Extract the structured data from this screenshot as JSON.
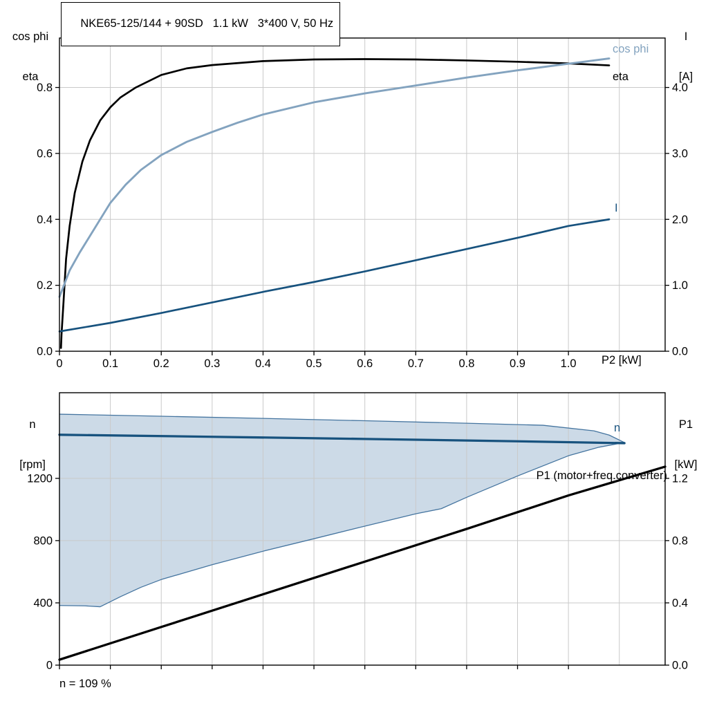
{
  "colors": {
    "curve_black": "#000000",
    "dark_blue": "#17527e",
    "light_blue": "#83a3bf",
    "band_fill": "#ccdae7",
    "band_stroke": "#44749f",
    "grid": "#c9c9c9",
    "axis": "#000000"
  },
  "chart_data": [
    {
      "type": "line",
      "title": "NKE65-125/144 + 90SD   1.1 kW   3*400 V, 50 Hz",
      "x_axis_label": "P2 [kW]",
      "y_left_axis_label": [
        "cos phi",
        "eta"
      ],
      "y_right_axis_label": [
        "I",
        "[A]"
      ],
      "xlim": [
        0,
        1.19
      ],
      "ylim_left": [
        0,
        0.95
      ],
      "ylim_right": [
        0,
        4.75
      ],
      "grid": true,
      "x_ticks": [
        [
          0,
          "0"
        ],
        [
          0.1,
          "0.1"
        ],
        [
          0.2,
          "0.2"
        ],
        [
          0.3,
          "0.3"
        ],
        [
          0.4,
          "0.4"
        ],
        [
          0.5,
          "0.5"
        ],
        [
          0.6,
          "0.6"
        ],
        [
          0.7,
          "0.7"
        ],
        [
          0.8,
          "0.8"
        ],
        [
          0.9,
          "0.9"
        ],
        [
          1.0,
          "1.0"
        ]
      ],
      "x_grid_extra": [
        1.1
      ],
      "y_ticks_left": [
        [
          0,
          "0.0"
        ],
        [
          0.2,
          "0.2"
        ],
        [
          0.4,
          "0.4"
        ],
        [
          0.6,
          "0.6"
        ],
        [
          0.8,
          "0.8"
        ]
      ],
      "y_ticks_right": [
        [
          0,
          "0.0"
        ],
        [
          1,
          "1.0"
        ],
        [
          2,
          "2.0"
        ],
        [
          3,
          "3.0"
        ],
        [
          4,
          "4.0"
        ]
      ],
      "series": [
        {
          "name": "eta",
          "axis": "left",
          "color": "#000000",
          "width": 2.7,
          "x": [
            0.003,
            0.004,
            0.008,
            0.013,
            0.02,
            0.03,
            0.045,
            0.06,
            0.08,
            0.1,
            0.12,
            0.15,
            0.2,
            0.25,
            0.3,
            0.4,
            0.5,
            0.6,
            0.7,
            0.8,
            0.9,
            1.0,
            1.08
          ],
          "y": [
            0.01,
            0.05,
            0.15,
            0.28,
            0.38,
            0.48,
            0.575,
            0.64,
            0.7,
            0.74,
            0.77,
            0.8,
            0.838,
            0.858,
            0.868,
            0.88,
            0.885,
            0.886,
            0.885,
            0.882,
            0.878,
            0.873,
            0.867
          ]
        },
        {
          "name": "cos phi",
          "axis": "left",
          "color": "#83a3bf",
          "width": 2.9,
          "x": [
            0,
            0.01,
            0.02,
            0.04,
            0.06,
            0.08,
            0.1,
            0.13,
            0.16,
            0.2,
            0.25,
            0.3,
            0.35,
            0.4,
            0.5,
            0.6,
            0.7,
            0.8,
            0.9,
            1.0,
            1.08
          ],
          "y": [
            0.165,
            0.205,
            0.245,
            0.3,
            0.35,
            0.4,
            0.45,
            0.505,
            0.55,
            0.595,
            0.635,
            0.665,
            0.693,
            0.718,
            0.755,
            0.782,
            0.806,
            0.83,
            0.852,
            0.872,
            0.888
          ]
        },
        {
          "name": "I",
          "axis": "right",
          "color": "#17527e",
          "width": 2.7,
          "x": [
            0,
            0.1,
            0.2,
            0.3,
            0.4,
            0.5,
            0.6,
            0.7,
            0.8,
            0.9,
            1.0,
            1.08
          ],
          "y": [
            0.3,
            0.43,
            0.58,
            0.74,
            0.9,
            1.05,
            1.21,
            1.38,
            1.55,
            1.72,
            1.9,
            2.0
          ]
        }
      ]
    },
    {
      "type": "line",
      "x_axis_label": "",
      "y_left_axis_label": [
        "n",
        "[rpm]"
      ],
      "y_right_axis_label": [
        "P1",
        "[kW]"
      ],
      "xlim": [
        0,
        1.19
      ],
      "ylim_left": [
        0,
        1750
      ],
      "ylim_right": [
        0,
        1.75
      ],
      "grid": true,
      "x_ticks": [
        [
          0,
          ""
        ],
        [
          0.1,
          ""
        ],
        [
          0.2,
          ""
        ],
        [
          0.3,
          ""
        ],
        [
          0.4,
          ""
        ],
        [
          0.5,
          ""
        ],
        [
          0.6,
          ""
        ],
        [
          0.7,
          ""
        ],
        [
          0.8,
          ""
        ],
        [
          0.9,
          ""
        ],
        [
          1.0,
          ""
        ]
      ],
      "x_grid_extra": [
        1.1
      ],
      "y_ticks_left": [
        [
          0,
          "0"
        ],
        [
          400,
          "400"
        ],
        [
          800,
          "800"
        ],
        [
          1200,
          "1200"
        ]
      ],
      "y_ticks_right": [
        [
          0,
          "0.0"
        ],
        [
          0.4,
          "0.4"
        ],
        [
          0.8,
          "0.8"
        ],
        [
          1.2,
          "1.2"
        ]
      ],
      "band": {
        "name": "speed-control-range",
        "fill": "#ccdae7",
        "stroke": "#44749f",
        "stroke_width": 1.3,
        "upper": {
          "x": [
            0,
            0.2,
            0.4,
            0.6,
            0.8,
            0.95,
            1.05,
            1.08,
            1.11
          ],
          "y": [
            1612,
            1599,
            1585,
            1570,
            1554,
            1541,
            1505,
            1478,
            1430
          ]
        },
        "lower": {
          "x": [
            0,
            0.05,
            0.08,
            0.12,
            0.16,
            0.2,
            0.3,
            0.4,
            0.5,
            0.6,
            0.7,
            0.75,
            0.8,
            0.9,
            1.0,
            1.06,
            1.11
          ],
          "y": [
            383,
            381,
            375,
            440,
            500,
            550,
            645,
            732,
            812,
            893,
            972,
            1005,
            1078,
            1215,
            1345,
            1400,
            1430
          ]
        }
      },
      "series": [
        {
          "name": "n",
          "axis": "left",
          "color": "#17527e",
          "width": 3.3,
          "x": [
            0,
            0.3,
            0.6,
            0.9,
            1.11
          ],
          "y": [
            1480,
            1467,
            1453,
            1438,
            1426
          ]
        },
        {
          "name": "P1 (motor+freq.converter)",
          "axis": "right",
          "color": "#000000",
          "width": 3.3,
          "x": [
            0,
            0.2,
            0.4,
            0.6,
            0.8,
            1.0,
            1.19
          ],
          "y": [
            0.035,
            0.245,
            0.455,
            0.665,
            0.875,
            1.09,
            1.275
          ]
        }
      ],
      "footnote": "n = 109 %"
    }
  ]
}
